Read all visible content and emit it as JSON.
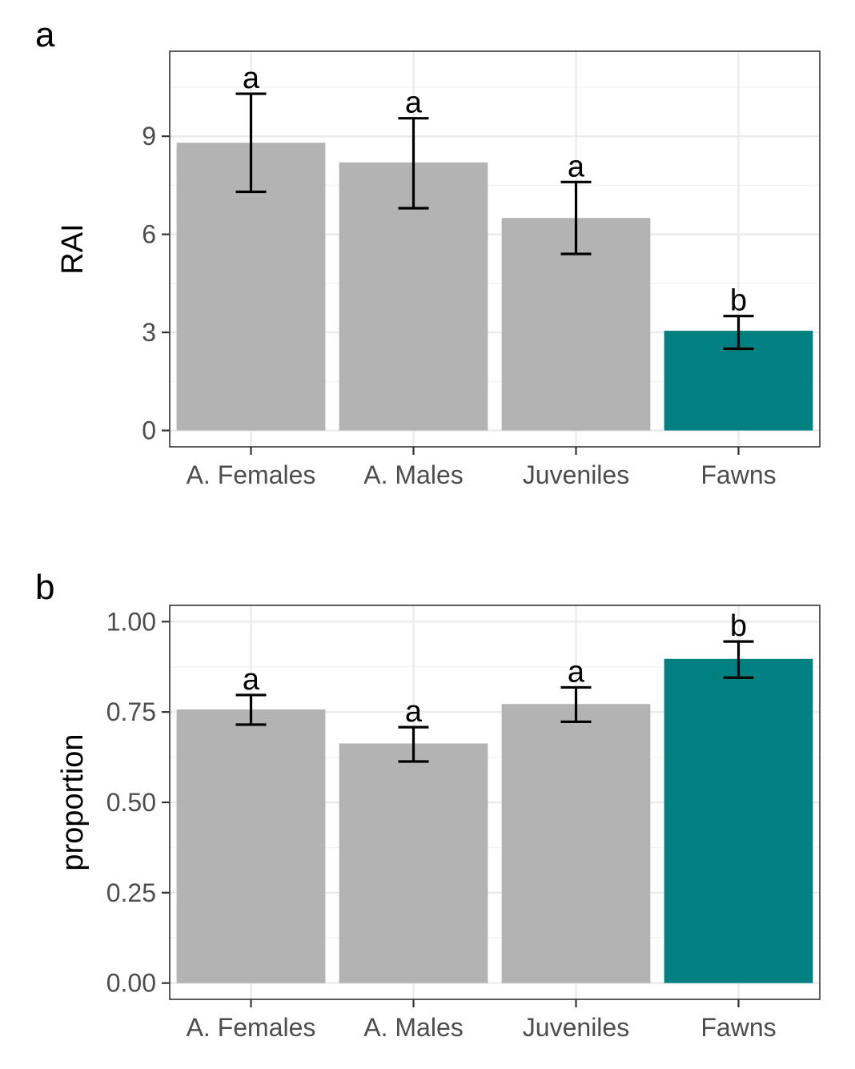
{
  "chart_data": [
    {
      "type": "bar",
      "panel_tag": "a",
      "ylabel": "RAI",
      "categories": [
        "A. Females",
        "A. Males",
        "Juveniles",
        "Fawns"
      ],
      "values": [
        8.8,
        8.2,
        6.5,
        3.05
      ],
      "error_low": [
        7.3,
        6.8,
        5.4,
        2.5
      ],
      "error_high": [
        10.3,
        9.55,
        7.6,
        3.5
      ],
      "letters": [
        "a",
        "a",
        "a",
        "b"
      ],
      "ylim": [
        -0.5,
        11.6
      ],
      "yticks": [
        0,
        3,
        6,
        9
      ],
      "ytick_labels": [
        "0",
        "3",
        "6",
        "9"
      ],
      "yminor": [
        1.5,
        4.5,
        7.5,
        10.5
      ],
      "colors": [
        "#b3b3b3",
        "#b3b3b3",
        "#b3b3b3",
        "#008080"
      ],
      "grid": true
    },
    {
      "type": "bar",
      "panel_tag": "b",
      "ylabel": "proportion",
      "categories": [
        "A. Females",
        "A. Males",
        "Juveniles",
        "Fawns"
      ],
      "values": [
        0.757,
        0.663,
        0.772,
        0.897
      ],
      "error_low": [
        0.715,
        0.613,
        0.723,
        0.845
      ],
      "error_high": [
        0.797,
        0.708,
        0.818,
        0.945
      ],
      "letters": [
        "a",
        "a",
        "a",
        "b"
      ],
      "ylim": [
        -0.045,
        1.045
      ],
      "yticks": [
        0,
        0.25,
        0.5,
        0.75,
        1.0
      ],
      "ytick_labels": [
        "0.00",
        "0.25",
        "0.50",
        "0.75",
        "1.00"
      ],
      "yminor": [
        0.125,
        0.375,
        0.625,
        0.875
      ],
      "colors": [
        "#b3b3b3",
        "#b3b3b3",
        "#b3b3b3",
        "#008080"
      ],
      "grid": true
    }
  ]
}
